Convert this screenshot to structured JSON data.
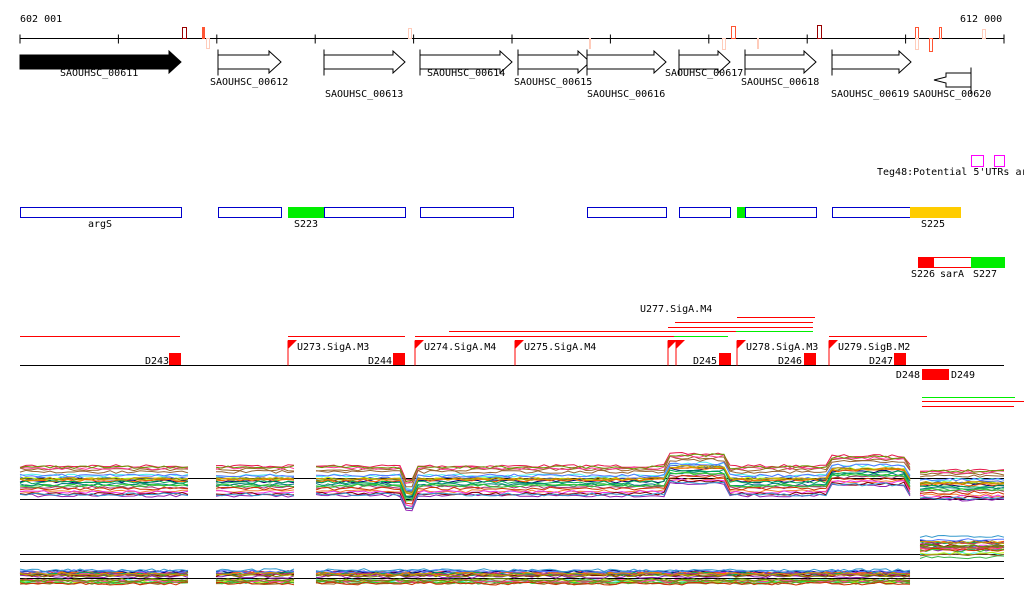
{
  "ruler": {
    "start_label": "602 001",
    "end_label": "612 000"
  },
  "genes": [
    {
      "label": "SAOUHSC_00611",
      "strand": "+",
      "highlighted": true
    },
    {
      "label": "SAOUHSC_00612",
      "strand": "+"
    },
    {
      "label": "SAOUHSC_00613",
      "strand": "+"
    },
    {
      "label": "SAOUHSC_00614",
      "strand": "+"
    },
    {
      "label": "SAOUHSC_00615",
      "strand": "+"
    },
    {
      "label": "SAOUHSC_00616",
      "strand": "+"
    },
    {
      "label": "SAOUHSC_00617",
      "strand": "+"
    },
    {
      "label": "SAOUHSC_00618",
      "strand": "+"
    },
    {
      "label": "SAOUHSC_00619",
      "strand": "+"
    },
    {
      "label": "SAOUHSC_00620",
      "strand": "-"
    }
  ],
  "teg_track": {
    "label": "Teg48:Potential 5'UTRs ar",
    "color": "#ff00ff"
  },
  "annotation_track": {
    "labels": [
      "argS",
      "S223",
      "S225"
    ],
    "colors": {
      "gene": "#0000cc",
      "green": "#00ee00",
      "orange": "#ffcc00"
    }
  },
  "srna_track": {
    "labels": [
      "S226",
      "sarA",
      "S227"
    ],
    "colors": {
      "red": "#ff0000",
      "green": "#00ee00"
    }
  },
  "promoters": {
    "up": [
      "U273.SigA.M3",
      "U274.SigA.M4",
      "U275.SigA.M4",
      "U277.SigA.M4",
      "U278.SigA.M3",
      "U279.SigB.M2"
    ],
    "down": [
      "D243",
      "D244",
      "D245",
      "D246",
      "D247",
      "D248",
      "D249"
    ]
  }
}
